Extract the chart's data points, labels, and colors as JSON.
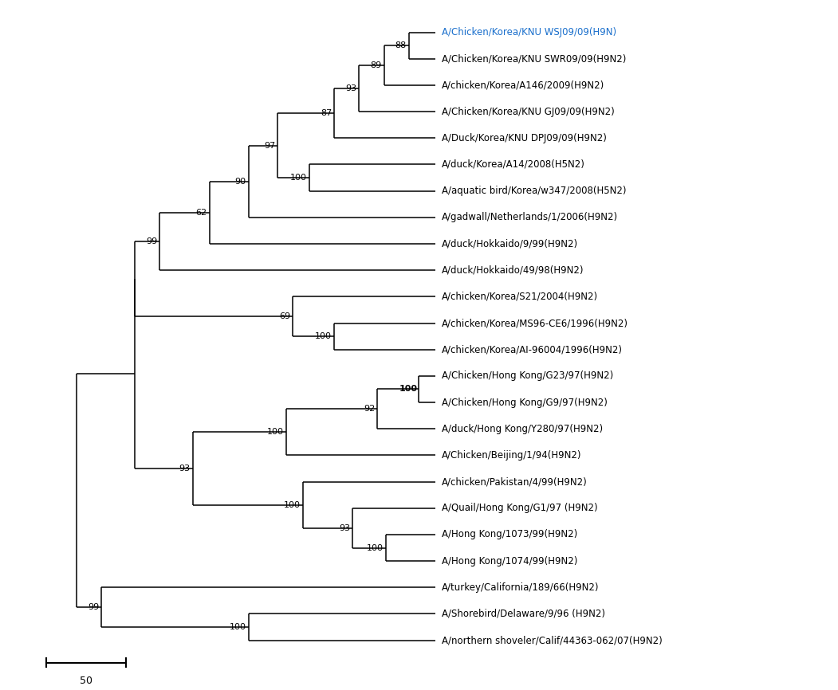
{
  "figsize": [
    10.51,
    8.66
  ],
  "dpi": 100,
  "background": "#ffffff",
  "taxa_labels": [
    {
      "key": "WSJ09",
      "text": "A/Chicken/Korea/KNU WSJ09/09(H9N)",
      "color": "#1a6fcc"
    },
    {
      "key": "SWR09",
      "text": "A/Chicken/Korea/KNU SWR09/09(H9N2)",
      "color": "#000000"
    },
    {
      "key": "A146",
      "text": "A/chicken/Korea/A146/2009(H9N2)",
      "color": "#000000"
    },
    {
      "key": "GJ09",
      "text": "A/Chicken/Korea/KNU GJ09/09(H9N2)",
      "color": "#000000"
    },
    {
      "key": "DPJ09",
      "text": "A/Duck/Korea/KNU DPJ09/09(H9N2)",
      "color": "#000000"
    },
    {
      "key": "A14_2008",
      "text": "A/duck/Korea/A14/2008(H5N2)",
      "color": "#000000"
    },
    {
      "key": "w347_2008",
      "text": "A/aquatic bird/Korea/w347/2008(H5N2)",
      "color": "#000000"
    },
    {
      "key": "gadwall",
      "text": "A/gadwall/Netherlands/1/2006(H9N2)",
      "color": "#000000"
    },
    {
      "key": "Hokkaido9",
      "text": "A/duck/Hokkaido/9/99(H9N2)",
      "color": "#000000"
    },
    {
      "key": "Hokkaido49",
      "text": "A/duck/Hokkaido/49/98(H9N2)",
      "color": "#000000"
    },
    {
      "key": "S21_2004",
      "text": "A/chicken/Korea/S21/2004(H9N2)",
      "color": "#000000"
    },
    {
      "key": "MS96",
      "text": "A/chicken/Korea/MS96-CE6/1996(H9N2)",
      "color": "#000000"
    },
    {
      "key": "AI96004",
      "text": "A/chicken/Korea/AI-96004/1996(H9N2)",
      "color": "#000000"
    },
    {
      "key": "HK_G23",
      "text": "A/Chicken/Hong Kong/G23/97(H9N2)",
      "color": "#000000"
    },
    {
      "key": "HK_G9",
      "text": "A/Chicken/Hong Kong/G9/97(H9N2)",
      "color": "#000000"
    },
    {
      "key": "HK_Y280",
      "text": "A/duck/Hong Kong/Y280/97(H9N2)",
      "color": "#000000"
    },
    {
      "key": "Beijing",
      "text": "A/Chicken/Beijing/1/94(H9N2)",
      "color": "#000000"
    },
    {
      "key": "Pakistan",
      "text": "A/chicken/Pakistan/4/99(H9N2)",
      "color": "#000000"
    },
    {
      "key": "Quail_G1",
      "text": "A/Quail/Hong Kong/G1/97 (H9N2)",
      "color": "#000000"
    },
    {
      "key": "HK_1073",
      "text": "A/Hong Kong/1073/99(H9N2)",
      "color": "#000000"
    },
    {
      "key": "HK_1074",
      "text": "A/Hong Kong/1074/99(H9N2)",
      "color": "#000000"
    },
    {
      "key": "California",
      "text": "A/turkey/California/189/66(H9N2)",
      "color": "#000000"
    },
    {
      "key": "Shorebird",
      "text": "A/Shorebird/Delaware/9/96 (H9N2)",
      "color": "#000000"
    },
    {
      "key": "NorthShoveler",
      "text": "A/northern shoveler/Calif/44363-062/07(H9N2)",
      "color": "#000000"
    }
  ]
}
